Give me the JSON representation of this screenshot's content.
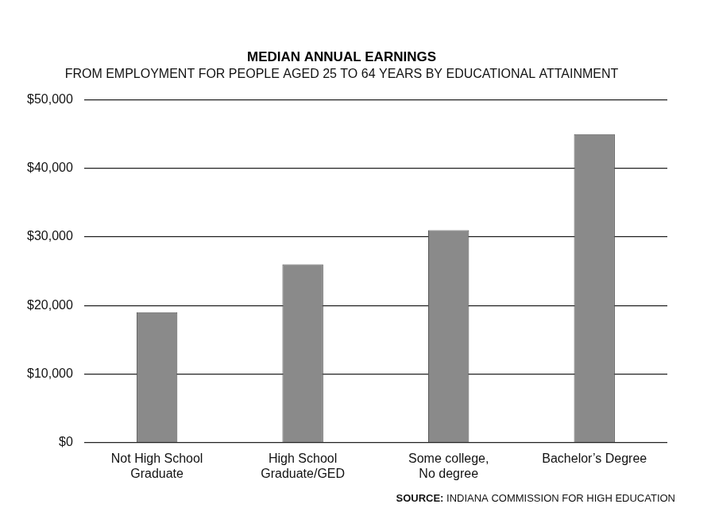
{
  "chart_data": {
    "type": "bar",
    "title": "MEDIAN ANNUAL EARNINGS",
    "subtitle": "FROM EMPLOYMENT FOR PEOPLE AGED 25 TO 64 YEARS BY EDUCATIONAL ATTAINMENT",
    "source": "SOURCE: INDIANA COMMISSION FOR HIGH EDUCATION",
    "categories": [
      "Not High School\nGraduate",
      "High School\nGraduate/GED",
      "Some college,\nNo degree",
      "Bachelor’s Degree"
    ],
    "values": [
      19000,
      26000,
      31000,
      45000
    ],
    "color": "#8a8a8a",
    "ylim": [
      0,
      50000
    ],
    "yticks": [
      {
        "value": 0,
        "label": "$0"
      },
      {
        "value": 10000,
        "label": "$10,000"
      },
      {
        "value": 20000,
        "label": "$20,000"
      },
      {
        "value": 30000,
        "label": "$30,000"
      },
      {
        "value": 40000,
        "label": "$40,000"
      },
      {
        "value": 50000,
        "label": "$50,000"
      }
    ],
    "grid": true
  }
}
